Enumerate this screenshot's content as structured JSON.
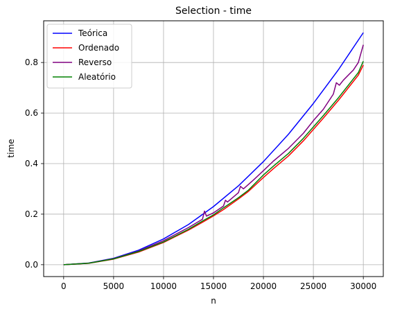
{
  "chart_data": {
    "type": "line",
    "title": "Selection - time",
    "xlabel": "n",
    "ylabel": "time",
    "xlim": [
      -2000,
      32000
    ],
    "ylim": [
      -0.047,
      0.965
    ],
    "xticks": [
      0,
      5000,
      10000,
      15000,
      20000,
      25000,
      30000
    ],
    "yticks": [
      0.0,
      0.2,
      0.4,
      0.6,
      0.8
    ],
    "xtick_labels": [
      "0",
      "5000",
      "10000",
      "15000",
      "20000",
      "25000",
      "30000"
    ],
    "ytick_labels": [
      "0.0",
      "0.2",
      "0.4",
      "0.6",
      "0.8"
    ],
    "grid": true,
    "legend_position": "top-left",
    "series": [
      {
        "name": "Teórica",
        "color": "#0000ff",
        "x": [
          0,
          2500,
          5000,
          7500,
          10000,
          12500,
          15000,
          17500,
          20000,
          22500,
          25000,
          27500,
          30000
        ],
        "y": [
          0.0,
          0.0064,
          0.0255,
          0.0574,
          0.102,
          0.159,
          0.23,
          0.312,
          0.408,
          0.516,
          0.638,
          0.771,
          0.918
        ]
      },
      {
        "name": "Ordenado",
        "color": "#ff0000",
        "x": [
          0,
          2500,
          5000,
          7500,
          10000,
          12500,
          14000,
          15000,
          16000,
          17500,
          18500,
          20000,
          21000,
          22500,
          24000,
          25000,
          26000,
          27500,
          28500,
          29500,
          30000
        ],
        "y": [
          0.0,
          0.0055,
          0.022,
          0.05,
          0.088,
          0.137,
          0.17,
          0.193,
          0.218,
          0.26,
          0.29,
          0.345,
          0.38,
          0.43,
          0.49,
          0.535,
          0.58,
          0.65,
          0.7,
          0.75,
          0.79
        ]
      },
      {
        "name": "Reverso",
        "color": "#800080",
        "x": [
          0,
          2500,
          5000,
          7500,
          10000,
          12500,
          13900,
          14100,
          14300,
          15000,
          16000,
          16200,
          16400,
          17500,
          17700,
          18000,
          19000,
          20000,
          21000,
          22500,
          24000,
          25000,
          26000,
          27000,
          27300,
          27600,
          28000,
          29000,
          29500,
          30000
        ],
        "y": [
          0.0,
          0.006,
          0.024,
          0.054,
          0.095,
          0.147,
          0.18,
          0.212,
          0.192,
          0.205,
          0.232,
          0.255,
          0.248,
          0.285,
          0.31,
          0.3,
          0.335,
          0.372,
          0.41,
          0.46,
          0.52,
          0.57,
          0.615,
          0.675,
          0.72,
          0.71,
          0.73,
          0.77,
          0.8,
          0.87
        ]
      },
      {
        "name": "Aleatório",
        "color": "#008000",
        "x": [
          0,
          2500,
          5000,
          7500,
          10000,
          12500,
          14000,
          15000,
          16000,
          17500,
          18500,
          20000,
          21000,
          22500,
          24000,
          25000,
          26000,
          27500,
          28500,
          29500,
          30000
        ],
        "y": [
          0.0,
          0.0057,
          0.023,
          0.052,
          0.09,
          0.14,
          0.175,
          0.197,
          0.225,
          0.265,
          0.295,
          0.355,
          0.39,
          0.44,
          0.5,
          0.545,
          0.59,
          0.66,
          0.71,
          0.76,
          0.805
        ]
      }
    ]
  }
}
